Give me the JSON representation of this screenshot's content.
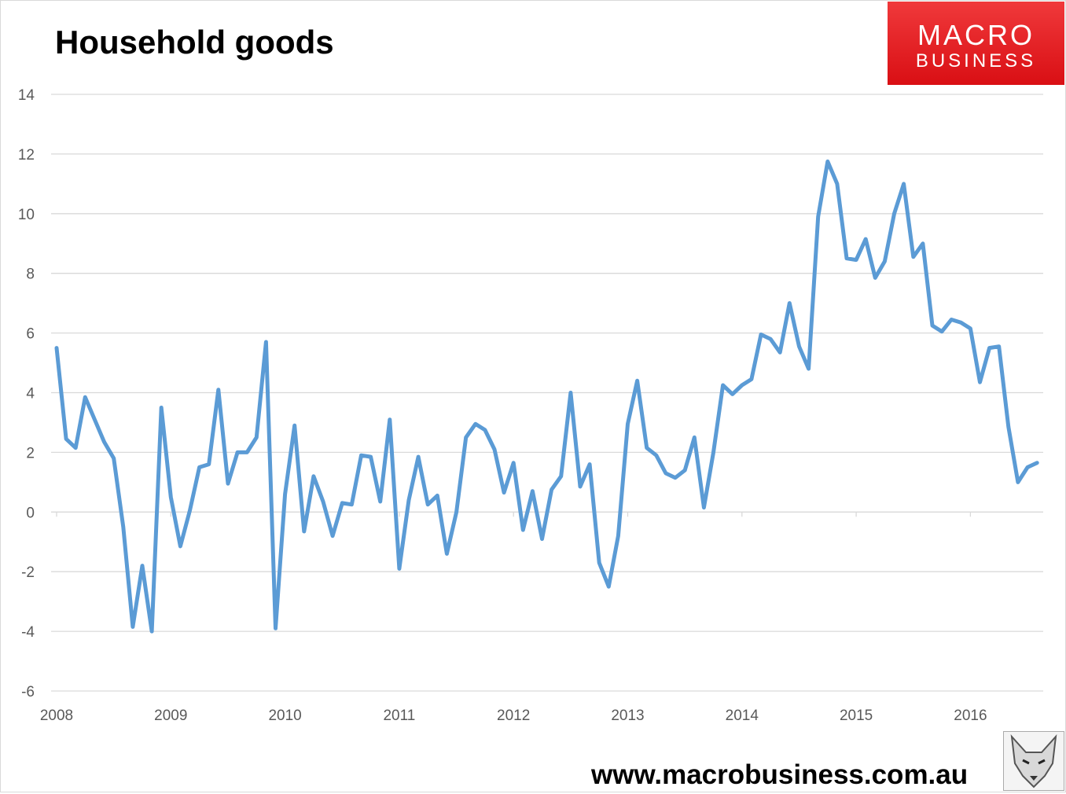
{
  "title": "Household goods",
  "logo": {
    "line1": "MACRO",
    "line2": "BUSINESS",
    "bg_color": "#e21c22"
  },
  "website": "www.macrobusiness.com.au",
  "chart_data": {
    "type": "line",
    "ylim": [
      -6,
      14
    ],
    "yticks": [
      "14",
      "12",
      "10",
      "8",
      "6",
      "4",
      "2",
      "0",
      "-2",
      "-4",
      "-6"
    ],
    "xticks": [
      "2008",
      "2009",
      "2010",
      "2011",
      "2012",
      "2013",
      "2014",
      "2015",
      "2016"
    ],
    "xlim": [
      "2008-01",
      "2016-09"
    ],
    "grid": true,
    "line_color": "#5b9bd5",
    "series": [
      {
        "x": [
          "2008-01",
          "2008-02",
          "2008-03",
          "2008-04",
          "2008-05",
          "2008-06",
          "2008-07",
          "2008-08",
          "2008-09",
          "2008-10",
          "2008-11",
          "2008-12",
          "2009-01",
          "2009-02",
          "2009-03",
          "2009-04",
          "2009-05",
          "2009-06",
          "2009-07",
          "2009-08",
          "2009-09",
          "2009-10",
          "2009-11",
          "2009-12",
          "2010-01",
          "2010-02",
          "2010-03",
          "2010-04",
          "2010-05",
          "2010-06",
          "2010-07",
          "2010-08",
          "2010-09",
          "2010-10",
          "2010-11",
          "2010-12",
          "2011-01",
          "2011-02",
          "2011-03",
          "2011-04",
          "2011-05",
          "2011-06",
          "2011-07",
          "2011-08",
          "2011-09",
          "2011-10",
          "2011-11",
          "2011-12",
          "2012-01",
          "2012-02",
          "2012-03",
          "2012-04",
          "2012-05",
          "2012-06",
          "2012-07",
          "2012-08",
          "2012-09",
          "2012-10",
          "2012-11",
          "2012-12",
          "2013-01",
          "2013-02",
          "2013-03",
          "2013-04",
          "2013-05",
          "2013-06",
          "2013-07",
          "2013-08",
          "2013-09",
          "2013-10",
          "2013-11",
          "2013-12",
          "2014-01",
          "2014-02",
          "2014-03",
          "2014-04",
          "2014-05",
          "2014-06",
          "2014-07",
          "2014-08",
          "2014-09",
          "2014-10",
          "2014-11",
          "2014-12",
          "2015-01",
          "2015-02",
          "2015-03",
          "2015-04",
          "2015-05",
          "2015-06",
          "2015-07",
          "2015-08",
          "2015-09",
          "2015-10",
          "2015-11",
          "2015-12",
          "2016-01",
          "2016-02",
          "2016-03",
          "2016-04",
          "2016-05",
          "2016-06",
          "2016-07",
          "2016-08"
        ],
        "values": [
          5.5,
          2.45,
          2.15,
          3.85,
          3.1,
          2.35,
          1.8,
          -0.5,
          -3.85,
          -1.8,
          -4.0,
          3.5,
          0.5,
          -1.15,
          0.05,
          1.5,
          1.6,
          4.1,
          0.95,
          2.0,
          2.0,
          2.5,
          5.7,
          -3.9,
          0.6,
          2.9,
          -0.65,
          1.2,
          0.35,
          -0.8,
          0.3,
          0.25,
          1.9,
          1.85,
          0.35,
          3.1,
          -1.9,
          0.4,
          1.85,
          0.25,
          0.55,
          -1.4,
          0.0,
          2.5,
          2.95,
          2.75,
          2.1,
          0.65,
          1.65,
          -0.6,
          0.7,
          -0.9,
          0.75,
          1.2,
          4.0,
          0.85,
          1.6,
          -1.7,
          -2.5,
          -0.8,
          2.95,
          4.4,
          2.15,
          1.9,
          1.3,
          1.15,
          1.4,
          2.5,
          0.15,
          2.0,
          4.25,
          3.95,
          4.25,
          4.45,
          5.95,
          5.8,
          5.35,
          7.0,
          5.55,
          4.8,
          9.9,
          11.75,
          11.0,
          8.5,
          8.45,
          9.15,
          7.85,
          8.4,
          10.0,
          11.0,
          8.55,
          9.0,
          6.25,
          6.05,
          6.45,
          6.35,
          6.15,
          4.35,
          5.5,
          5.55,
          2.85,
          1.0,
          1.5,
          1.65
        ]
      }
    ]
  }
}
